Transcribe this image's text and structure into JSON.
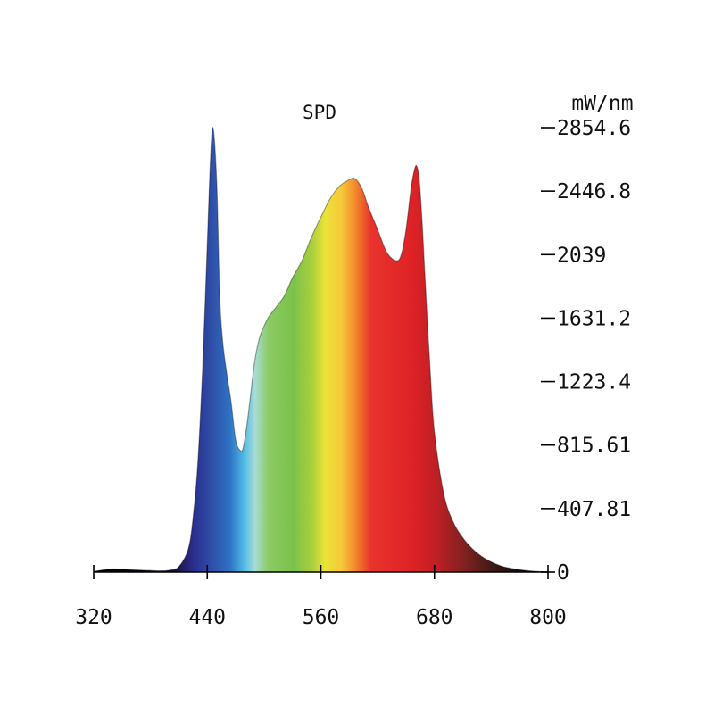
{
  "chart_data": {
    "type": "area",
    "title": "SPD",
    "xlabel": "",
    "ylabel": "mW/nm",
    "xlim": [
      320,
      800
    ],
    "ylim": [
      0,
      2854.6
    ],
    "x_ticks": [
      "320",
      "440",
      "560",
      "680",
      "800"
    ],
    "y_ticks": [
      "0",
      "407.81",
      "815.61",
      "1223.4",
      "1631.2",
      "2039",
      "2446.8",
      "2854.6"
    ],
    "y_axis_side": "right",
    "grid": false,
    "fill": "visible-spectrum gradient by wavelength",
    "x": [
      320,
      340,
      360,
      380,
      390,
      400,
      410,
      420,
      425,
      430,
      435,
      440,
      443,
      446,
      450,
      453,
      456,
      460,
      465,
      470,
      475,
      478,
      482,
      486,
      490,
      495,
      500,
      505,
      510,
      515,
      520,
      525,
      530,
      540,
      550,
      560,
      570,
      580,
      590,
      595,
      600,
      605,
      610,
      620,
      630,
      640,
      645,
      650,
      655,
      658,
      661,
      664,
      667,
      670,
      675,
      680,
      690,
      700,
      710,
      720,
      730,
      740,
      750,
      760,
      770,
      780,
      790,
      800
    ],
    "values": [
      5,
      20,
      15,
      10,
      8,
      12,
      35,
      150,
      350,
      700,
      1300,
      2100,
      2600,
      2854.6,
      2500,
      1800,
      1500,
      1300,
      1100,
      850,
      780,
      800,
      950,
      1150,
      1350,
      1500,
      1580,
      1640,
      1680,
      1720,
      1760,
      1820,
      1890,
      2000,
      2150,
      2280,
      2400,
      2480,
      2520,
      2530,
      2500,
      2440,
      2350,
      2200,
      2050,
      2000,
      2040,
      2200,
      2450,
      2560,
      2610,
      2520,
      2250,
      1900,
      1350,
      900,
      500,
      320,
      220,
      150,
      100,
      65,
      40,
      25,
      15,
      8,
      4,
      2
    ]
  }
}
